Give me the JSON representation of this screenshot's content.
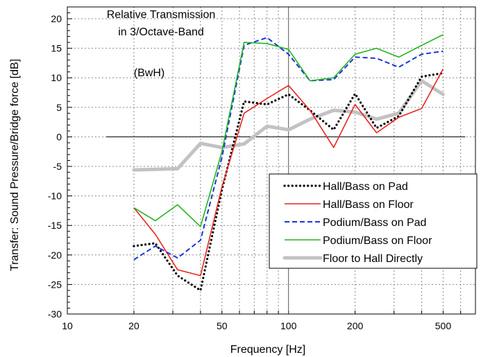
{
  "chart_data": {
    "type": "line",
    "title_lines": [
      "Relative Transmission",
      "in 3/Octave-Band"
    ],
    "annotation": "(BwH)",
    "xlabel": "Frequency [Hz]",
    "ylabel": "Transfer: Sound Pressure/Bridge force [dB]",
    "x_scale": "log",
    "xlim": [
      10,
      700
    ],
    "ylim": [
      -30,
      22
    ],
    "x_ticks": [
      {
        "value": 10,
        "label": "10"
      },
      {
        "value": 20,
        "label": "20"
      },
      {
        "value": 50,
        "label": "50"
      },
      {
        "value": 100,
        "label": "100"
      },
      {
        "value": 200,
        "label": "200"
      },
      {
        "value": 500,
        "label": "500"
      }
    ],
    "y_ticks": [
      {
        "value": 20,
        "label": "20"
      },
      {
        "value": 15,
        "label": "15"
      },
      {
        "value": 10,
        "label": "10"
      },
      {
        "value": 5,
        "label": "5"
      },
      {
        "value": 0,
        "label": "0"
      },
      {
        "value": -5,
        "label": "-5"
      },
      {
        "value": -10,
        "label": "-10"
      },
      {
        "value": -15,
        "label": "-15"
      },
      {
        "value": -20,
        "label": "-20"
      },
      {
        "value": -25,
        "label": "-25"
      },
      {
        "value": -30,
        "label": "-30"
      }
    ],
    "grid": true,
    "legend_position": "bottom-right",
    "zero_line": {
      "y": 0,
      "x_range": [
        15,
        630
      ]
    },
    "reference_line": {
      "x": 100
    },
    "x": [
      20,
      25,
      31.5,
      40,
      50,
      63,
      80,
      100,
      125,
      160,
      200,
      250,
      315,
      400,
      500
    ],
    "series": [
      {
        "name": "Hall/Bass on Pad",
        "color": "#000000",
        "style": "dotted",
        "x": [
          20,
          25,
          31.5,
          40,
          50,
          63,
          80,
          100,
          125,
          160,
          200,
          250,
          315,
          400,
          500
        ],
        "values": [
          -18.5,
          -18,
          -23.5,
          -26,
          -9,
          6,
          5.5,
          7.2,
          4.5,
          1.2,
          7.3,
          1.5,
          3.5,
          10.2,
          10.8
        ]
      },
      {
        "name": "Hall/Bass on Floor",
        "color": "#e8241e",
        "style": "solid",
        "x": [
          20,
          25,
          31.5,
          40,
          50,
          63,
          80,
          100,
          125,
          160,
          200,
          250,
          315,
          400,
          500
        ],
        "values": [
          -12,
          -16.5,
          -22.5,
          -23.5,
          -8.5,
          4,
          6.5,
          8.7,
          4.5,
          -1.8,
          5.5,
          0.7,
          3.3,
          4.8,
          11.5
        ]
      },
      {
        "name": "Podium/Bass on Pad",
        "color": "#1c32d8",
        "style": "dashed",
        "x": [
          20,
          25,
          31.5,
          40,
          50,
          63,
          80,
          100,
          125,
          160,
          200,
          250,
          315,
          400,
          500
        ],
        "values": [
          -20.8,
          -18.5,
          -20.5,
          -17.5,
          -3.5,
          15.5,
          16.8,
          14,
          9.5,
          9.7,
          13.5,
          13.3,
          11.8,
          14,
          14.5
        ]
      },
      {
        "name": "Podium/Bass on Floor",
        "color": "#22b422",
        "style": "solid",
        "x": [
          20,
          25,
          31.5,
          40,
          50,
          63,
          80,
          100,
          125,
          160,
          200,
          250,
          315,
          400,
          500
        ],
        "values": [
          -12,
          -14.2,
          -11.5,
          -15.2,
          -2.5,
          16,
          15.8,
          14.8,
          9.5,
          10,
          14,
          15,
          13.5,
          15.5,
          17.3
        ]
      },
      {
        "name": "Floor to Hall Directly",
        "color": "#c2c2c2",
        "style": "thick",
        "x": [
          20,
          25,
          31.5,
          40,
          50,
          63,
          80,
          100,
          125,
          160,
          200,
          250,
          315,
          400,
          500
        ],
        "values": [
          -5.6,
          -5.5,
          -5.4,
          -1.1,
          -1.8,
          -1.2,
          1.8,
          1.2,
          3,
          4.5,
          4.2,
          3,
          4,
          9.5,
          7.2
        ]
      }
    ]
  }
}
